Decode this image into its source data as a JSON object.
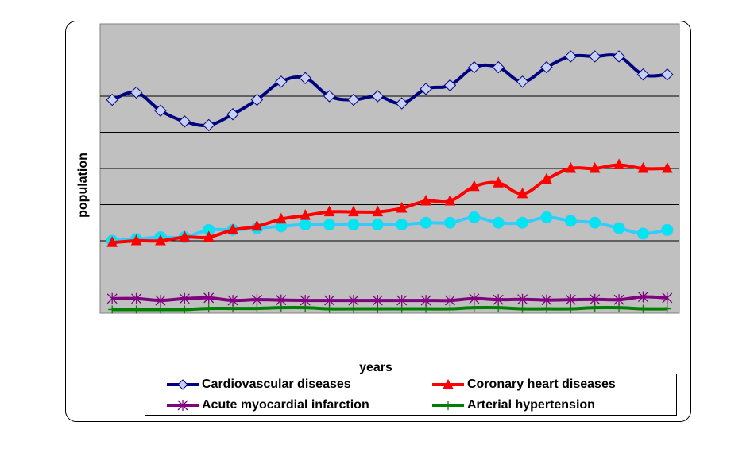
{
  "chart_data": {
    "type": "line",
    "title": "",
    "xlabel": "years",
    "ylabel": "population",
    "ylim": [
      0,
      80
    ],
    "grid": true,
    "legend_position": "bottom",
    "series": [
      {
        "name": "Cardiovascular diseases",
        "color": "#000080",
        "marker": "diamond",
        "values": [
          59,
          61,
          56,
          53,
          52,
          55,
          59,
          64,
          65,
          60,
          59,
          60,
          58,
          62,
          63,
          68,
          68,
          64,
          68,
          71,
          71,
          71,
          66,
          66
        ]
      },
      {
        "name": "Coronary heart diseases",
        "color": "#ff0000",
        "marker": "triangle",
        "values": [
          19.5,
          20,
          20,
          21,
          21,
          23,
          24,
          26,
          27,
          28,
          28,
          28,
          29,
          31,
          31,
          35,
          36,
          33,
          37,
          40,
          40,
          41,
          40,
          40
        ]
      },
      {
        "name": "",
        "color": "#00e5ee",
        "marker": "circle",
        "values": [
          20,
          20.5,
          21,
          21,
          23,
          23,
          23.5,
          24,
          24.5,
          24.5,
          24.5,
          24.5,
          24.5,
          25,
          25,
          26.5,
          25,
          25,
          26.5,
          25.5,
          25,
          23.5,
          22,
          23
        ]
      },
      {
        "name": "Acute myocardial infarction",
        "color": "#800080",
        "marker": "star",
        "values": [
          4,
          4,
          3.5,
          4,
          4.2,
          3.5,
          3.7,
          3.6,
          3.5,
          3.5,
          3.5,
          3.5,
          3.5,
          3.5,
          3.5,
          4,
          3.7,
          3.8,
          3.6,
          3.7,
          3.8,
          3.7,
          4.5,
          4.2
        ]
      },
      {
        "name": "Arterial hypertension",
        "color": "#008000",
        "marker": "plus",
        "values": [
          1,
          1,
          1,
          1,
          1.3,
          1.3,
          1.3,
          1.5,
          1.5,
          1.2,
          1.2,
          1.2,
          1.2,
          1.2,
          1.2,
          1.5,
          1.5,
          1.2,
          1.2,
          1.2,
          1.5,
          1.5,
          1.2,
          1.2
        ]
      }
    ]
  }
}
